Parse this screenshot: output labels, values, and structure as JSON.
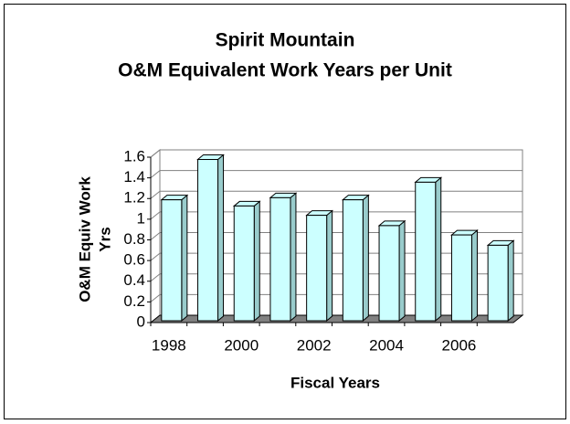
{
  "chart_data": {
    "type": "bar",
    "title": "Spirit Mountain",
    "subtitle": "O&M Equivalent Work Years per Unit",
    "xlabel": "Fiscal Years",
    "ylabel": [
      "O&M Equiv Work",
      "Yrs"
    ],
    "categories": [
      "1998",
      null,
      "2000",
      null,
      "2002",
      null,
      "2004",
      null,
      "2006",
      null
    ],
    "values": [
      1.17,
      1.56,
      1.11,
      1.19,
      1.02,
      1.17,
      0.92,
      1.34,
      0.83,
      0.73
    ],
    "color": "#ccffff",
    "ylim": [
      0,
      1.6
    ],
    "yticks": [
      0,
      0.2,
      0.4,
      0.6,
      0.8,
      1,
      1.2,
      1.4,
      1.6
    ],
    "grid": true
  }
}
